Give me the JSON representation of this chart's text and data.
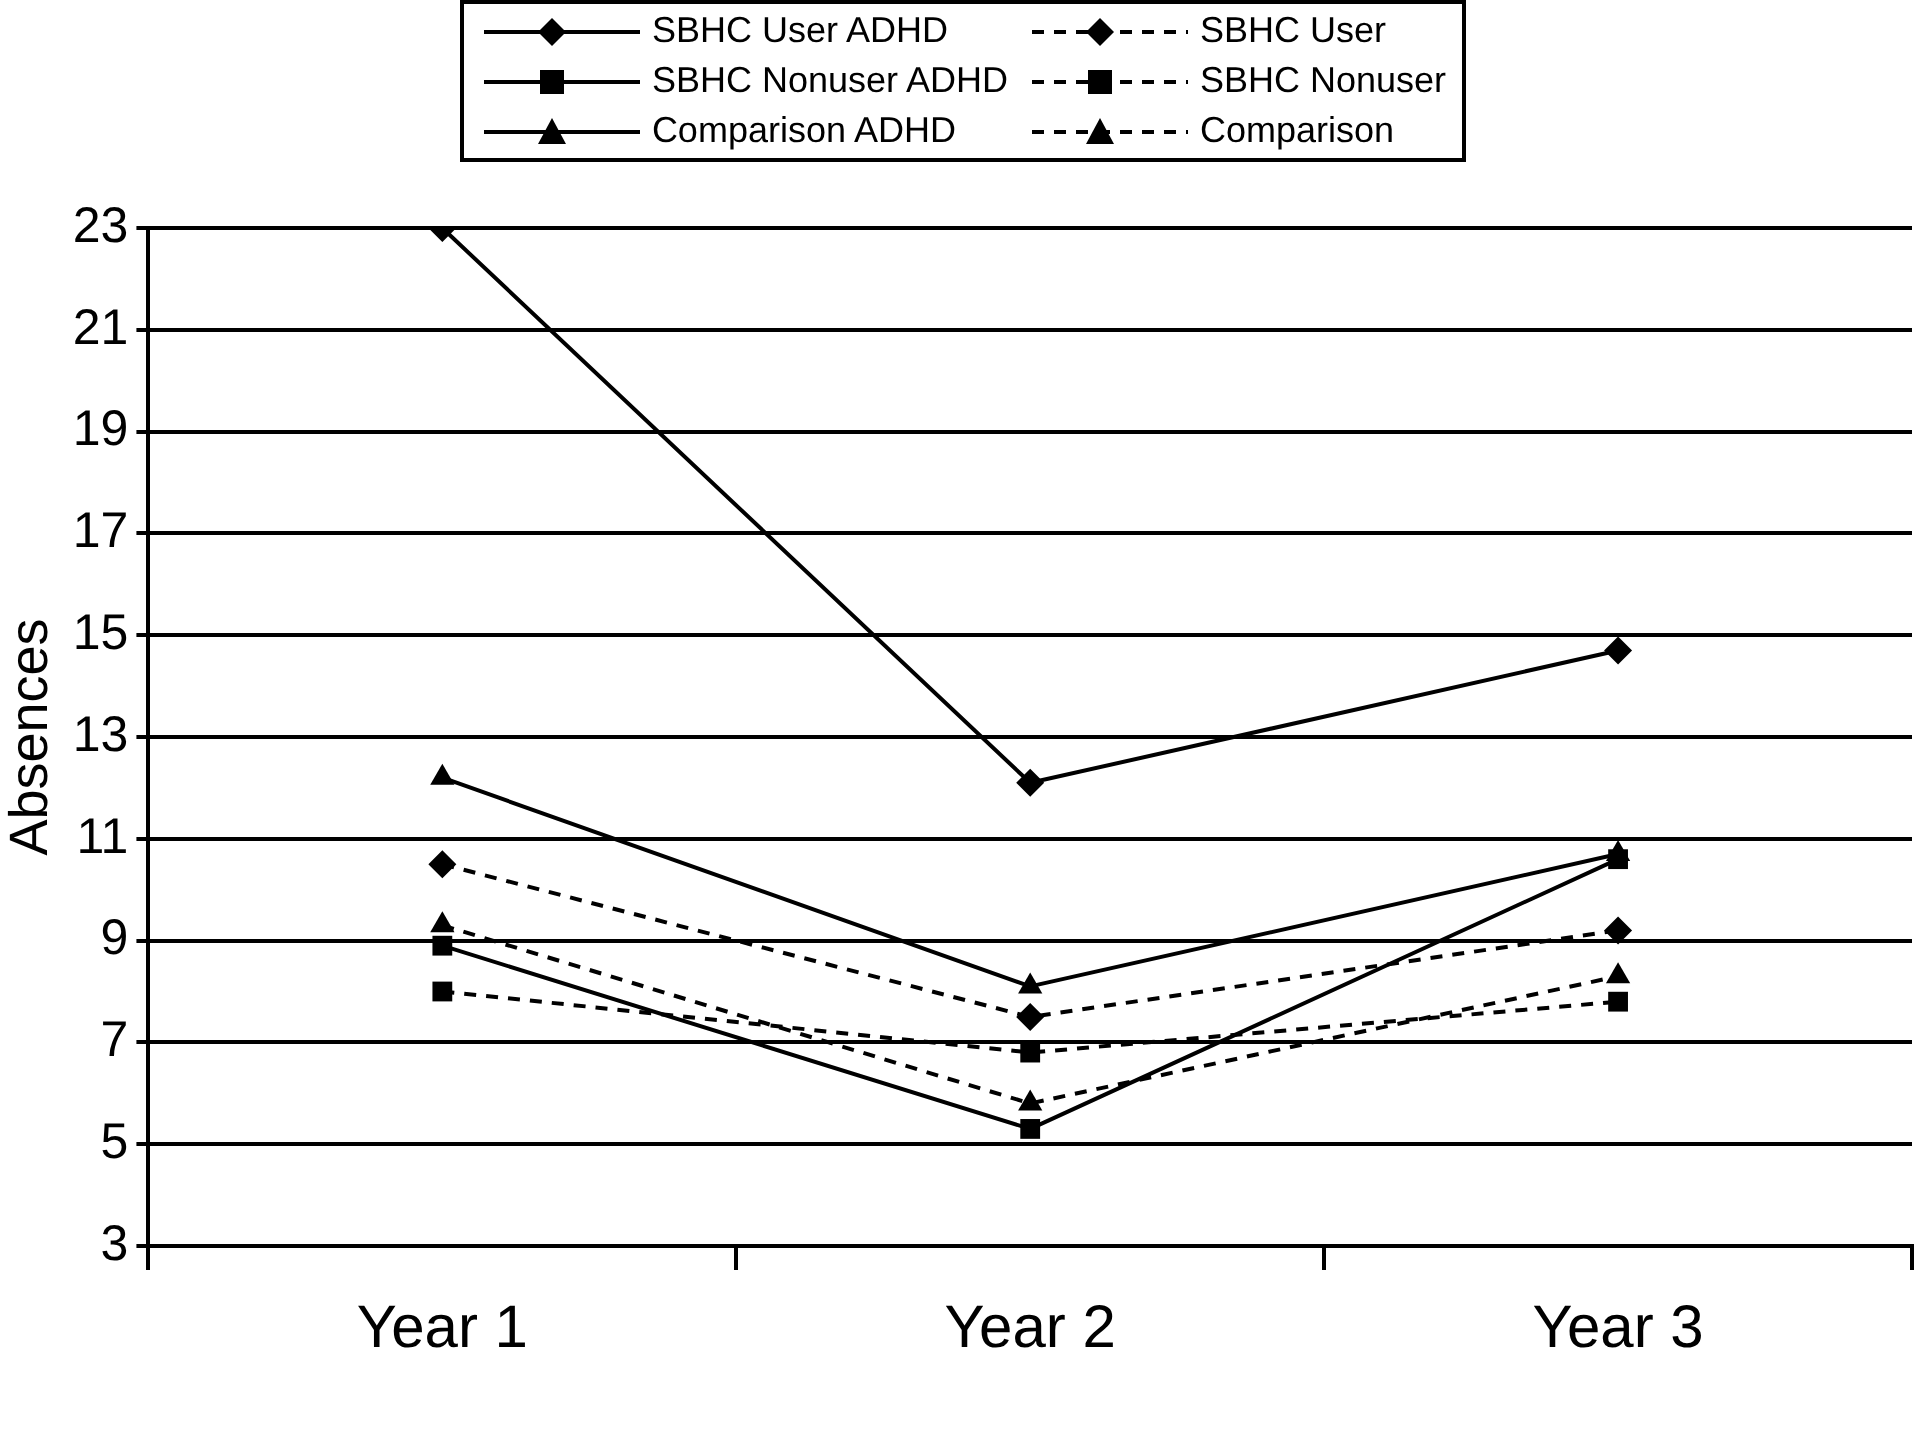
{
  "chart_data": {
    "type": "line",
    "ylabel": "Absences",
    "categories": [
      "Year 1",
      "Year 2",
      "Year 3"
    ],
    "series": [
      {
        "name": "SBHC User ADHD",
        "color": "#000000",
        "marker": "diamond",
        "line_style": "solid",
        "values": [
          23,
          12.1,
          14.7
        ]
      },
      {
        "name": "SBHC User",
        "color": "#000000",
        "marker": "diamond",
        "line_style": "dashed",
        "values": [
          10.5,
          7.5,
          9.2
        ]
      },
      {
        "name": "SBHC Nonuser ADHD",
        "color": "#000000",
        "marker": "square",
        "line_style": "solid",
        "values": [
          8.9,
          5.3,
          10.6
        ]
      },
      {
        "name": "SBHC Nonuser",
        "color": "#000000",
        "marker": "square",
        "line_style": "dashed",
        "values": [
          8.0,
          6.8,
          7.8
        ]
      },
      {
        "name": "Comparison ADHD",
        "color": "#000000",
        "marker": "triangle",
        "line_style": "solid",
        "values": [
          12.2,
          8.1,
          10.7
        ]
      },
      {
        "name": "Comparison",
        "color": "#000000",
        "marker": "triangle",
        "line_style": "dashed",
        "values": [
          9.3,
          5.8,
          8.3
        ]
      }
    ],
    "ylim": [
      3,
      23
    ],
    "yticks": [
      3,
      5,
      7,
      9,
      11,
      13,
      15,
      17,
      19,
      21,
      23
    ],
    "grid": "y",
    "legend": "top"
  }
}
